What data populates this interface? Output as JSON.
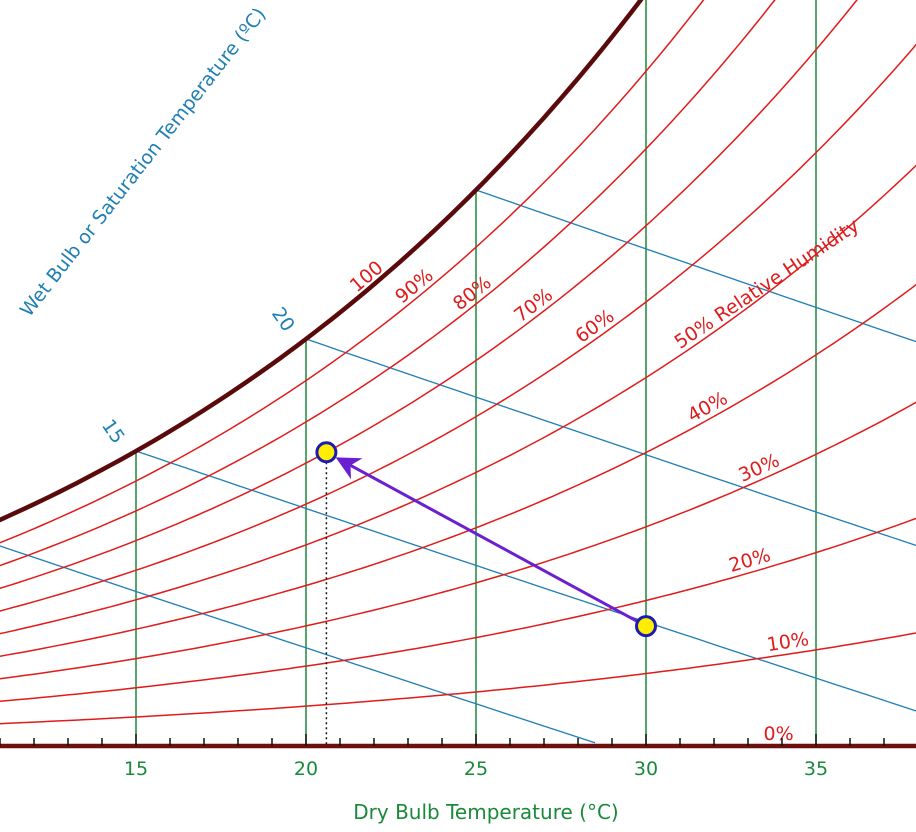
{
  "chart_data": {
    "type": "line",
    "title": "",
    "xlabel": "Dry Bulb Temperature (°C)",
    "wet_bulb_axis_label": "Wet Bulb or Saturation Temperature (ºC)",
    "xlim": [
      11,
      38
    ],
    "x_ticks": [
      15,
      20,
      25,
      30,
      35
    ],
    "x_tick_labels": [
      "15",
      "20",
      "25",
      "30",
      "35"
    ],
    "relative_humidity_curves": {
      "values_percent": [
        0,
        10,
        20,
        30,
        40,
        50,
        60,
        70,
        80,
        90,
        100
      ],
      "labels": [
        "0%",
        "10%",
        "20%",
        "30%",
        "40%",
        "50% Relative Humidity",
        "60%",
        "70%",
        "80%",
        "90%",
        "100"
      ]
    },
    "wet_bulb_lines": {
      "values_c": [
        10,
        15,
        20,
        25
      ],
      "labels": [
        "15",
        "20"
      ]
    },
    "points": [
      {
        "dry_bulb_c": 30.0,
        "relative_humidity_percent": 16.5
      },
      {
        "dry_bulb_c": 20.6,
        "relative_humidity_percent": 70
      }
    ],
    "process_arrow": {
      "from": 0,
      "to": 1
    },
    "grid": true,
    "colors": {
      "saturation_curve": "#5a0a0a",
      "rh_curves": "#e01b1b",
      "wet_bulb_lines": "#1f7fb5",
      "dry_bulb_lines": "#1a8a3a",
      "axis": "#6b0f0f",
      "arrow": "#6a1fd0",
      "point_fill": "#ffee00",
      "point_stroke": "#1c1cb0"
    }
  }
}
